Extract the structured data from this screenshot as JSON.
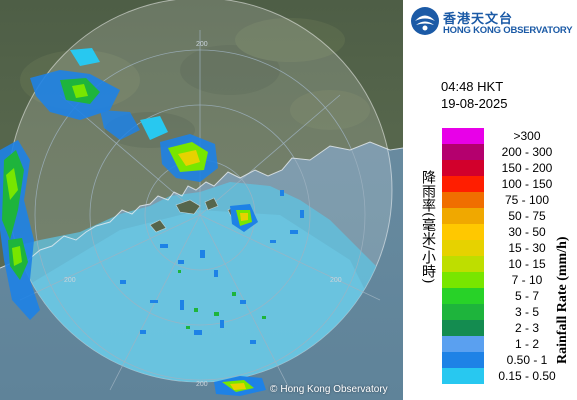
{
  "radar": {
    "range_ring_labels": [
      "200",
      "200",
      "200",
      "200"
    ],
    "copyright": "Hong Kong Observatory",
    "copyright_symbol": "©"
  },
  "header": {
    "logo_cn": "香港天文台",
    "logo_en": "HONG KONG OBSERVATORY",
    "time": "04:48 HKT",
    "date": "19-08-2025"
  },
  "legend": {
    "title_cn": "降雨率(毫米/小時)",
    "title_en": "Rainfall Rate (mm/h)",
    "items": [
      {
        "label": ">300",
        "color": "#e800e8"
      },
      {
        "label": "200 - 300",
        "color": "#b4006e"
      },
      {
        "label": "150 - 200",
        "color": "#d2002c"
      },
      {
        "label": "100 - 150",
        "color": "#ff1e00"
      },
      {
        "label": "75 - 100",
        "color": "#f06e00"
      },
      {
        "label": "50 - 75",
        "color": "#f0a800"
      },
      {
        "label": "30 - 50",
        "color": "#ffc800"
      },
      {
        "label": "15 - 30",
        "color": "#e6d200"
      },
      {
        "label": "10 - 15",
        "color": "#bede00"
      },
      {
        "label": "7 - 10",
        "color": "#78e600"
      },
      {
        "label": "5 - 7",
        "color": "#28d228"
      },
      {
        "label": "3 - 5",
        "color": "#1eb43c"
      },
      {
        "label": "2 - 3",
        "color": "#148c50"
      },
      {
        "label": "1 - 2",
        "color": "#5aa0f0"
      },
      {
        "label": "0.50 - 1",
        "color": "#1e82e6"
      },
      {
        "label": "0.15 - 0.50",
        "color": "#28c8f0"
      }
    ]
  }
}
